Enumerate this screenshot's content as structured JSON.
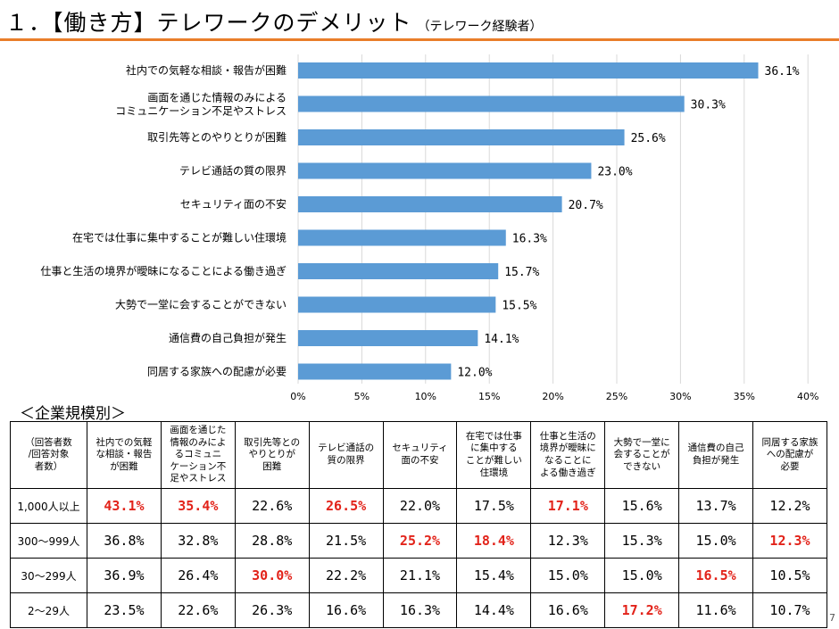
{
  "page": {
    "title": "１．【働き方】テレワークのデメリット",
    "subtitle": "（テレワーク経験者）",
    "page_number": "7"
  },
  "colors": {
    "bar": "#5B9BD5",
    "accent_rule": "#E97E2A",
    "highlight": "#E2231A",
    "grid": "#D9D9D9"
  },
  "chart_data": {
    "type": "bar",
    "orientation": "horizontal",
    "categories": [
      "社内での気軽な相談・報告が困難",
      "画面を通じた情報のみによる\nコミュニケーション不足やストレス",
      "取引先等とのやりとりが困難",
      "テレビ通話の質の限界",
      "セキュリティ面の不安",
      "在宅では仕事に集中することが難しい住環境",
      "仕事と生活の境界が曖昧になることによる働き過ぎ",
      "大勢で一堂に会することができない",
      "通信費の自己負担が発生",
      "同居する家族への配慮が必要"
    ],
    "values": [
      36.1,
      30.3,
      25.6,
      23.0,
      20.7,
      16.3,
      15.7,
      15.5,
      14.1,
      12.0
    ],
    "value_labels": [
      "36.1%",
      "30.3%",
      "25.6%",
      "23.0%",
      "20.7%",
      "16.3%",
      "15.7%",
      "15.5%",
      "14.1%",
      "12.0%"
    ],
    "xlim": [
      0,
      40
    ],
    "xticks": [
      0,
      5,
      10,
      15,
      20,
      25,
      30,
      35,
      40
    ],
    "xtick_labels": [
      "0%",
      "5%",
      "10%",
      "15%",
      "20%",
      "25%",
      "30%",
      "35%",
      "40%"
    ],
    "grid": true,
    "xlabel": "",
    "ylabel": ""
  },
  "table": {
    "heading": "＜企業規模別＞",
    "corner": "（回答者数\n/回答対象\n者数）",
    "headers": [
      "社内での気軽\nな相談・報告\nが困難",
      "画面を通じた\n情報のみによ\nるコミュニ\nケーション不\n足やストレス",
      "取引先等との\nやりとりが\n困難",
      "テレビ通話の\n質の限界",
      "セキュリティ\n面の不安",
      "在宅では仕事\nに集中する\nことが難しい\n住環境",
      "仕事と生活の\n境界が曖昧に\nなることに\nよる働き過ぎ",
      "大勢で一堂に\n会することが\nできない",
      "通信費の自己\n負担が発生",
      "同居する家族\nへの配慮が\n必要"
    ],
    "rows": [
      {
        "label": "1,000人以上",
        "values": [
          "43.1%",
          "35.4%",
          "22.6%",
          "26.5%",
          "22.0%",
          "17.5%",
          "17.1%",
          "15.6%",
          "13.7%",
          "12.2%"
        ],
        "highlight": [
          true,
          true,
          false,
          true,
          false,
          false,
          true,
          false,
          false,
          false
        ]
      },
      {
        "label": "300～999人",
        "values": [
          "36.8%",
          "32.8%",
          "28.8%",
          "21.5%",
          "25.2%",
          "18.4%",
          "12.3%",
          "15.3%",
          "15.0%",
          "12.3%"
        ],
        "highlight": [
          false,
          false,
          false,
          false,
          true,
          true,
          false,
          false,
          false,
          true
        ]
      },
      {
        "label": "30～299人",
        "values": [
          "36.9%",
          "26.4%",
          "30.0%",
          "22.2%",
          "21.1%",
          "15.4%",
          "15.0%",
          "15.0%",
          "16.5%",
          "10.5%"
        ],
        "highlight": [
          false,
          false,
          true,
          false,
          false,
          false,
          false,
          false,
          true,
          false
        ]
      },
      {
        "label": "2～29人",
        "values": [
          "23.5%",
          "22.6%",
          "26.3%",
          "16.6%",
          "16.3%",
          "14.4%",
          "16.6%",
          "17.2%",
          "11.6%",
          "10.7%"
        ],
        "highlight": [
          false,
          false,
          false,
          false,
          false,
          false,
          false,
          true,
          false,
          false
        ]
      }
    ]
  }
}
